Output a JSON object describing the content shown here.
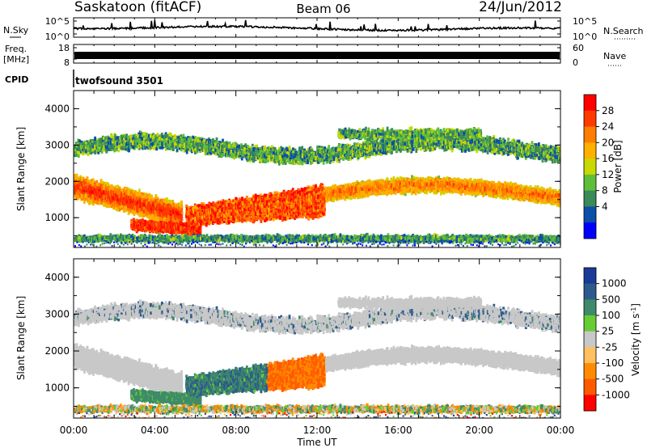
{
  "header": {
    "station": "Saskatoon (fitACF)",
    "beam": "Beam 06",
    "date": "24/Jun/2012"
  },
  "strips": {
    "nsky_label": "N.Sky",
    "nsky_ticks": [
      "10^5",
      "10^0"
    ],
    "nsearch_label": "N.Search",
    "nsearch_ticks": [
      "10^5",
      "10^0"
    ],
    "freq_label": "Freq.",
    "freq_unit": "[MHz]",
    "freq_ticks": [
      "18",
      "8"
    ],
    "nave_label": "Nave",
    "nave_ticks": [
      "60",
      "0"
    ],
    "cpid_label": "CPID",
    "cpid_value": "twofsound 3501"
  },
  "chart_data": [
    {
      "type": "heatmap",
      "name": "power",
      "ylabel": "Slant Range [km]",
      "ylim": [
        180,
        4500
      ],
      "yticks": [
        "1000",
        "2000",
        "3000",
        "4000"
      ],
      "colorbar": {
        "label": "Power [dB]",
        "ticks": [
          "28",
          "24",
          "20",
          "16",
          "12",
          "8",
          "4"
        ],
        "colors": [
          "#ff0000",
          "#ff3b00",
          "#ff7d00",
          "#ffb000",
          "#c8d800",
          "#5fbf3a",
          "#3a8a5a",
          "#0b4fa8",
          "#0000ff"
        ],
        "range": [
          0,
          30
        ]
      },
      "features": [
        {
          "start_hour": 0.0,
          "end_hour": 5.0,
          "range_km": [
            1200,
            2400
          ],
          "level": "17-26 dB"
        },
        {
          "start_hour": 2.5,
          "end_hour": 6.0,
          "range_km": [
            500,
            1000
          ],
          "level": "24-30 dB"
        },
        {
          "start_hour": 5.5,
          "end_hour": 12.5,
          "range_km": [
            700,
            1800
          ],
          "level": "20-30 dB"
        },
        {
          "start_hour": 13.0,
          "end_hour": 24.0,
          "range_km": [
            1300,
            2100
          ],
          "level": "14-24 dB"
        },
        {
          "start_hour": 0.0,
          "end_hour": 24.0,
          "range_km": [
            2500,
            3400
          ],
          "level": "4-16 dB"
        }
      ]
    },
    {
      "type": "heatmap",
      "name": "velocity",
      "ylabel": "Slant Range [km]",
      "ylim": [
        180,
        4500
      ],
      "yticks": [
        "1000",
        "2000",
        "3000",
        "4000"
      ],
      "colorbar": {
        "label": "Velocity [m s-1]",
        "ticks": [
          "1000",
          "500",
          "100",
          "25",
          "-25",
          "-100",
          "-500",
          "-1000"
        ],
        "colors": [
          "#1a3a9a",
          "#2d5a8c",
          "#3f8a6a",
          "#66cc33",
          "#c8c8c8",
          "#ffc060",
          "#ff8c00",
          "#ff5a00",
          "#ff0000"
        ]
      },
      "features": [
        {
          "start_hour": 0.0,
          "end_hour": 6.0,
          "range_km": [
            1000,
            2500
          ],
          "value": "-25 to 25 m/s (ground scatter)"
        },
        {
          "start_hour": 3.0,
          "end_hour": 9.5,
          "range_km": [
            700,
            1600
          ],
          "value": "25 to 500 m/s"
        },
        {
          "start_hour": 9.5,
          "end_hour": 12.3,
          "range_km": [
            1000,
            1800
          ],
          "value": "-100 to -500 m/s"
        },
        {
          "start_hour": 12.5,
          "end_hour": 24.0,
          "range_km": [
            1300,
            2600
          ],
          "value": "-25 to 25 m/s (ground scatter)"
        }
      ]
    }
  ],
  "xaxis": {
    "label": "Time UT",
    "ticks": [
      "00:00",
      "04:00",
      "08:00",
      "12:00",
      "16:00",
      "20:00",
      "00:00"
    ]
  }
}
